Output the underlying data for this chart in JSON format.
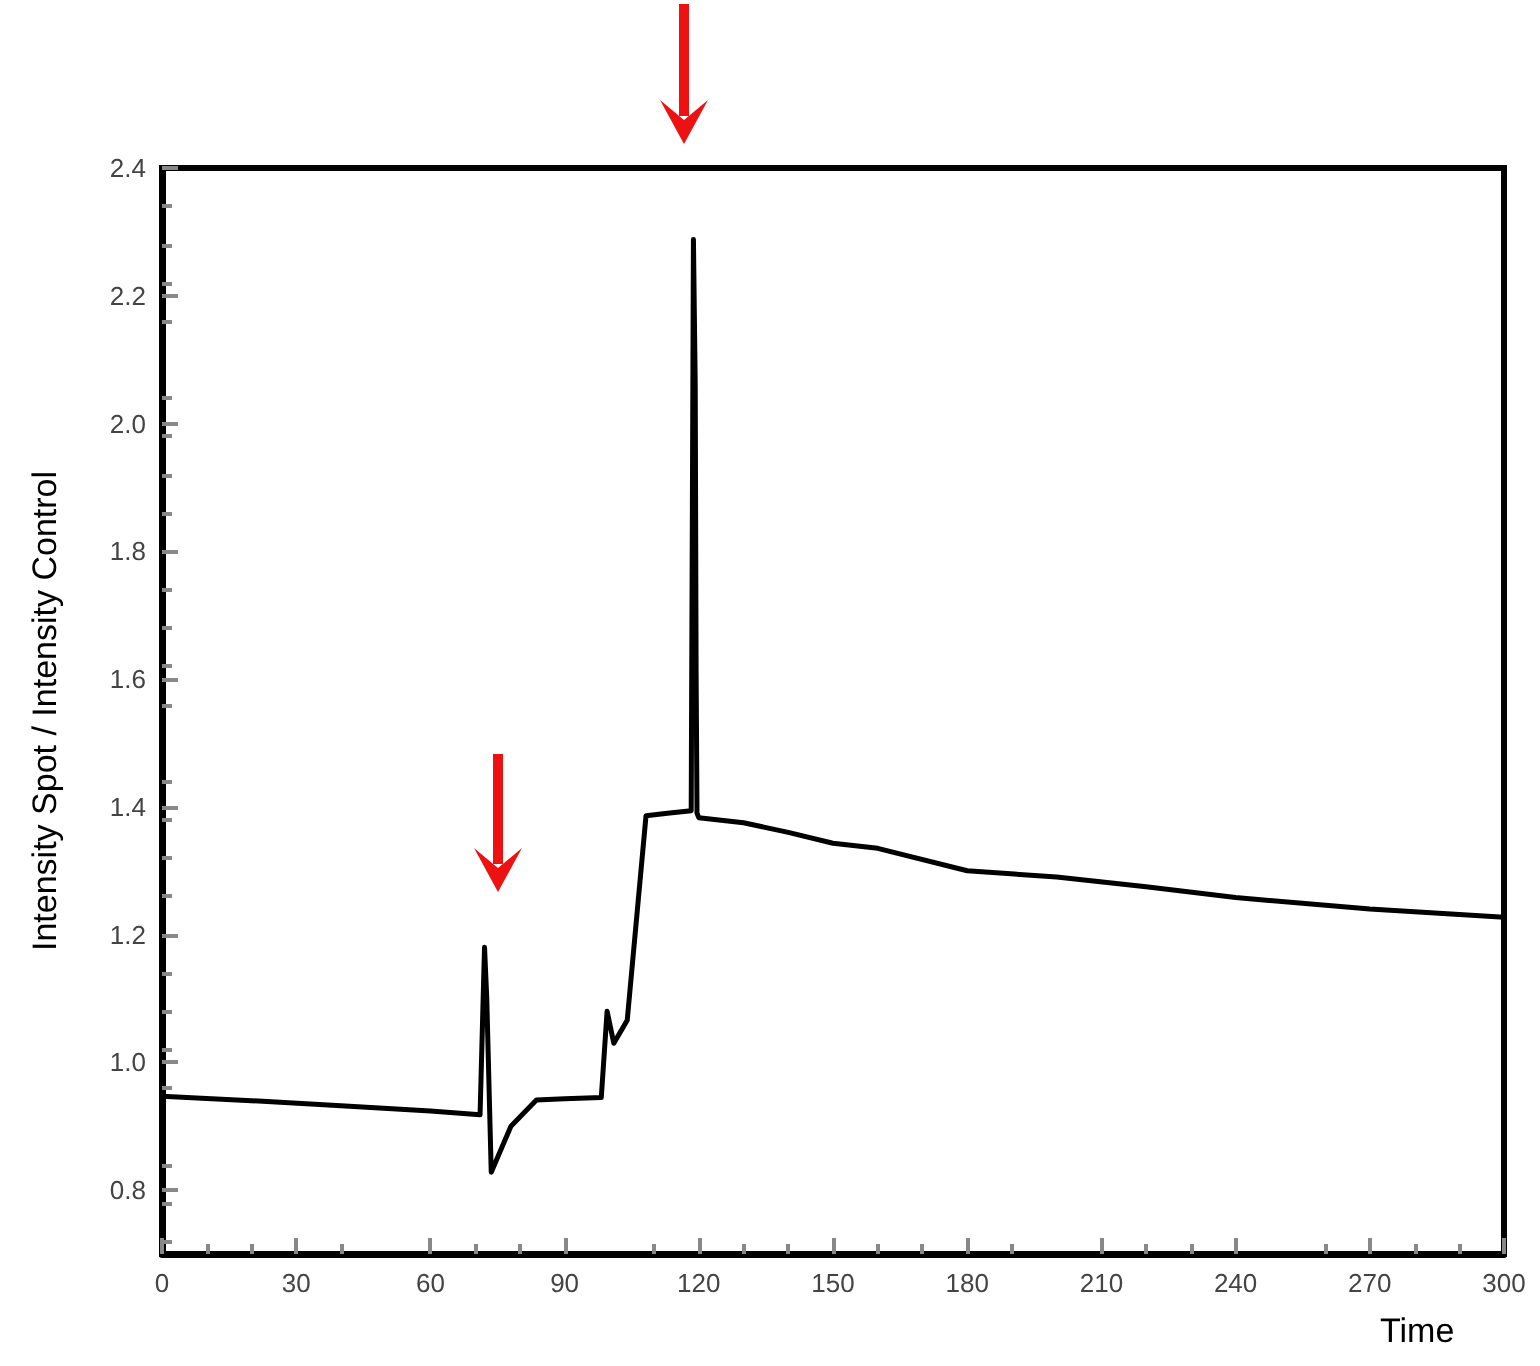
{
  "chart_data": {
    "type": "line",
    "xlabel": "Time",
    "ylabel": "Intensity Spot / Intensity Control",
    "x": [
      0,
      20,
      40,
      60,
      71.1,
      72.1,
      72.6,
      73.6,
      78,
      83.7,
      90,
      98.2,
      99.5,
      101,
      104,
      108.2,
      113,
      118.3,
      118.8,
      119.2,
      119.4,
      119.6,
      120,
      130,
      140,
      150,
      160,
      180,
      200,
      220,
      240,
      270,
      300
    ],
    "series": [
      {
        "color": "#000000",
        "values": [
          0.947,
          0.94,
          0.932,
          0.924,
          0.918,
          1.18,
          1.1,
          0.828,
          0.9,
          0.941,
          0.943,
          0.945,
          1.08,
          1.03,
          1.066,
          1.386,
          1.39,
          1.394,
          2.288,
          2.06,
          1.61,
          1.39,
          1.383,
          1.375,
          1.36,
          1.343,
          1.335,
          1.3,
          1.29,
          1.275,
          1.258,
          1.24,
          1.227
        ]
      }
    ],
    "xlim": [
      0,
      300
    ],
    "xticks": [
      0,
      30,
      60,
      90,
      120,
      150,
      180,
      210,
      240,
      270,
      300
    ],
    "ylim": [
      0.7,
      2.4
    ],
    "yticks": [
      0.8,
      {
        "value": 1,
        "label": "1.0"
      },
      1.2,
      1.4,
      1.6,
      1.8,
      {
        "value": 2,
        "label": "2.0"
      },
      2.2,
      2.4
    ],
    "grid": false,
    "marker": "none",
    "line_style": "solid"
  }
}
